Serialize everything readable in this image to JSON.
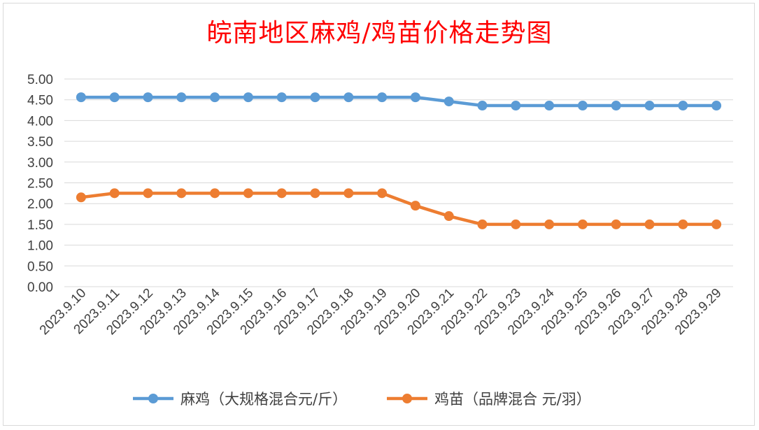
{
  "chart_data": {
    "type": "line",
    "title": "皖南地区麻鸡/鸡苗价格走势图",
    "categories": [
      "2023.9.10",
      "2023.9.11",
      "2023.9.12",
      "2023.9.13",
      "2023.9.14",
      "2023.9.15",
      "2023.9.16",
      "2023.9.17",
      "2023.9.18",
      "2023.9.19",
      "2023.9.20",
      "2023.9.21",
      "2023.9.22",
      "2023.9.23",
      "2023.9.24",
      "2023.9.25",
      "2023.9.26",
      "2023.9.27",
      "2023.9.28",
      "2023.9.29"
    ],
    "series": [
      {
        "name": "麻鸡（大规格混合元/斤）",
        "color": "#5b9bd5",
        "values": [
          4.56,
          4.56,
          4.56,
          4.56,
          4.56,
          4.56,
          4.56,
          4.56,
          4.56,
          4.56,
          4.56,
          4.46,
          4.36,
          4.36,
          4.36,
          4.36,
          4.36,
          4.36,
          4.36,
          4.36
        ]
      },
      {
        "name": "鸡苗（品牌混合 元/羽）",
        "color": "#ed7d31",
        "values": [
          2.15,
          2.25,
          2.25,
          2.25,
          2.25,
          2.25,
          2.25,
          2.25,
          2.25,
          2.25,
          1.95,
          1.7,
          1.5,
          1.5,
          1.5,
          1.5,
          1.5,
          1.5,
          1.5,
          1.5
        ]
      }
    ],
    "xlabel": "",
    "ylabel": "",
    "ylim": [
      0,
      5
    ],
    "y_ticks": [
      "5.00",
      "4.50",
      "4.00",
      "3.50",
      "3.00",
      "2.50",
      "2.00",
      "1.50",
      "1.00",
      "0.50",
      "0.00"
    ],
    "grid": true,
    "legend_position": "bottom"
  }
}
